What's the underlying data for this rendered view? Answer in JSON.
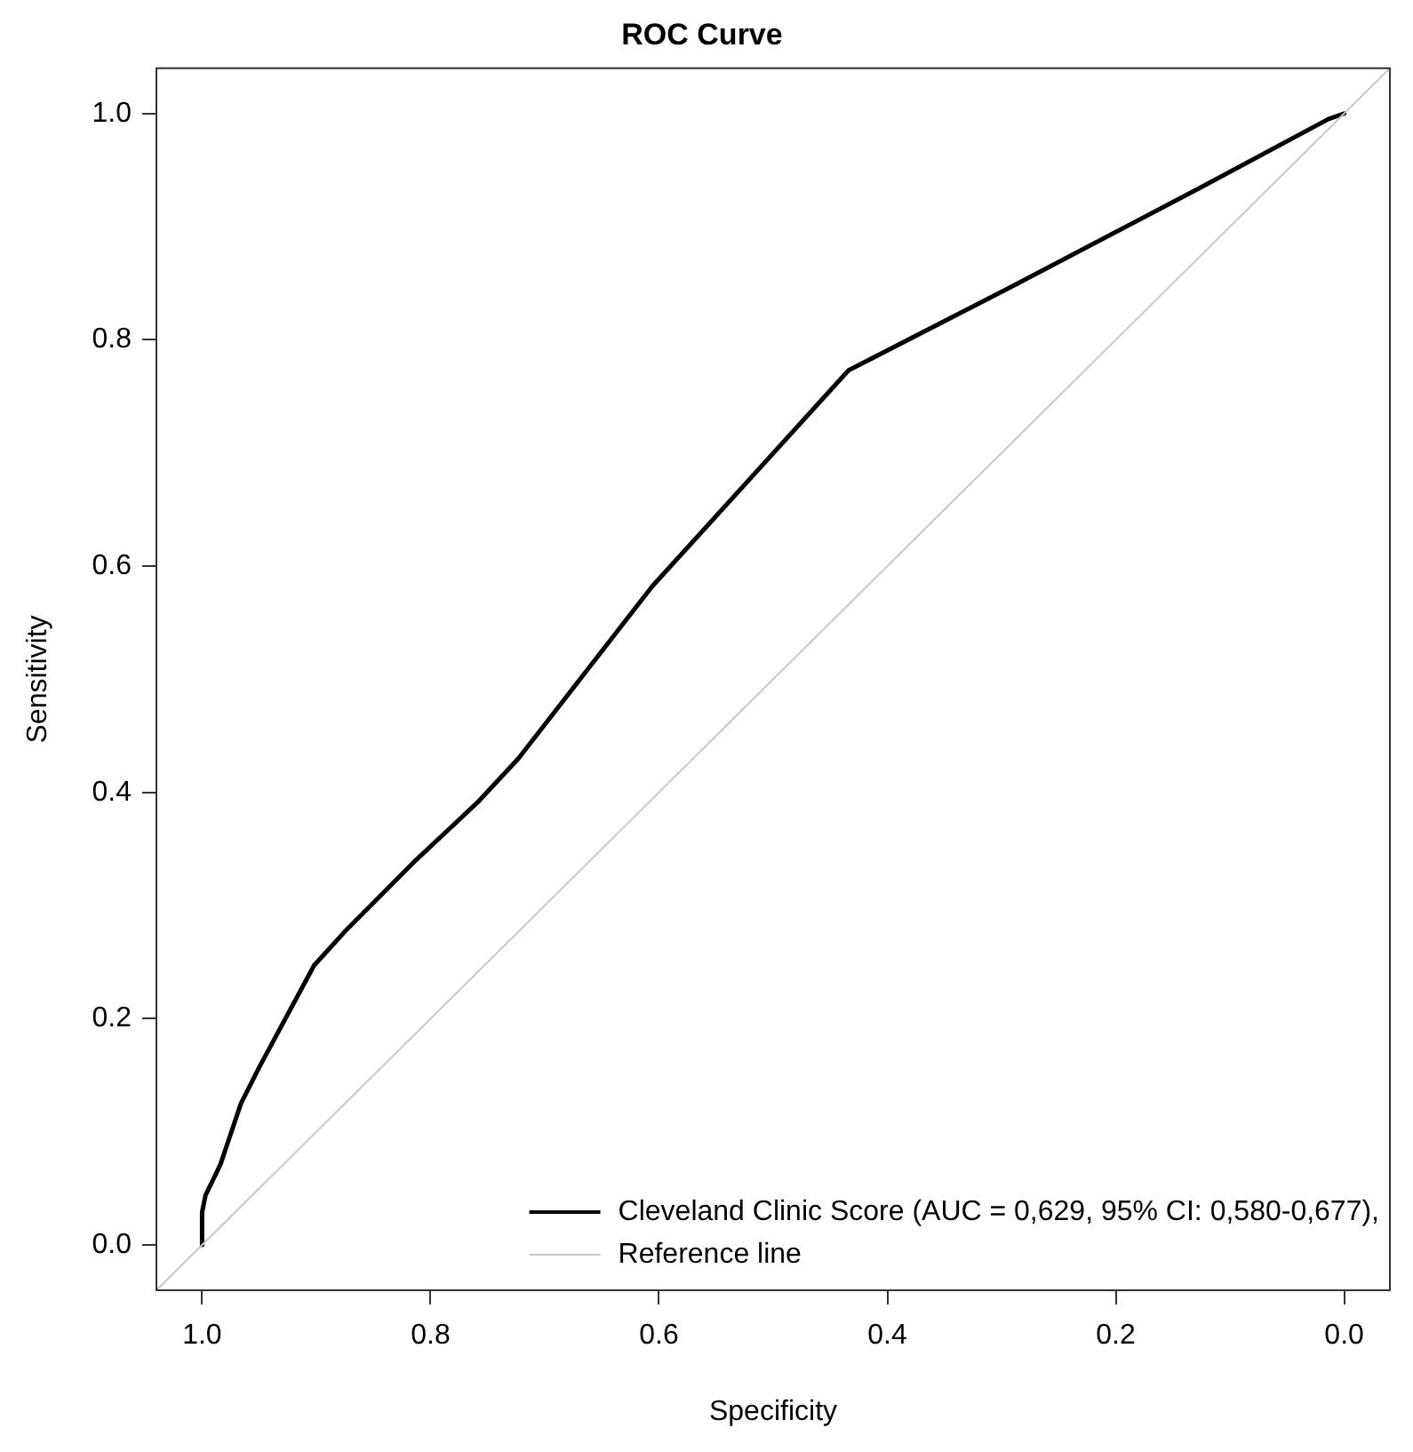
{
  "chart_data": {
    "type": "line",
    "title": "ROC Curve",
    "xlabel": "Specificity",
    "ylabel": "Sensitivity",
    "xlim": [
      1.04,
      -0.04
    ],
    "ylim": [
      -0.04,
      1.04
    ],
    "xticks": [
      {
        "value": 1,
        "label": "1.0"
      },
      0.8,
      0.6,
      0.4,
      0.2,
      {
        "value": 0,
        "label": "0.0"
      }
    ],
    "yticks": [
      {
        "value": 0,
        "label": "0.0"
      },
      0.2,
      0.4,
      0.6,
      0.8,
      {
        "value": 1,
        "label": "1.0"
      }
    ],
    "grid": false,
    "legend": "bottom right",
    "marker": "none",
    "line_style": "solid",
    "series": [
      {
        "name": "Cleveland Clinic Score (AUC = 0,629, 95% CI: 0,580-0,677),",
        "color": "#000000",
        "x": [
          1.0,
          1.0,
          0.997,
          0.984,
          0.966,
          0.95,
          0.902,
          0.875,
          0.815,
          0.759,
          0.723,
          0.606,
          0.434,
          0.293,
          0.125,
          0.014,
          0.0
        ],
        "values": [
          0.0,
          0.029,
          0.044,
          0.071,
          0.125,
          0.157,
          0.247,
          0.277,
          0.338,
          0.391,
          0.43,
          0.582,
          0.773,
          0.846,
          0.935,
          0.995,
          1.0
        ]
      },
      {
        "name": "Reference line",
        "color": "#c8c8c8",
        "x": [
          1.04,
          -0.04
        ],
        "values": [
          -0.04,
          1.04
        ]
      }
    ]
  }
}
